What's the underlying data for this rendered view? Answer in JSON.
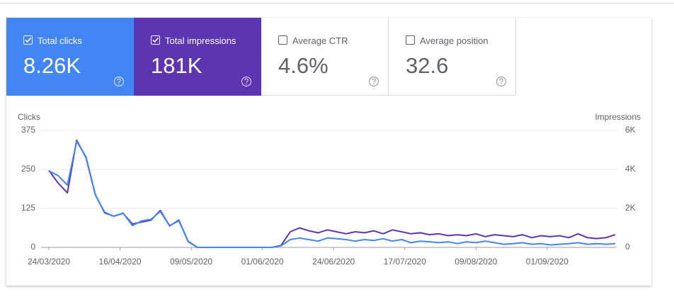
{
  "cards": [
    {
      "value": "8.26K",
      "checked": true
    },
    {
      "value": "181K",
      "checked": true
    },
    {
      "label": "Average CTR",
      "value": "4.6%",
      "checked": false
    },
    {
      "label": "Average position",
      "value": "32.6",
      "checked": false
    }
  ],
  "chart_data": {
    "type": "line",
    "ylabel": "Clicks",
    "y2label": "Impressions",
    "x": [
      "24/03/2020",
      "27/03/2020",
      "30/03/2020",
      "02/04/2020",
      "05/04/2020",
      "08/04/2020",
      "11/04/2020",
      "14/04/2020",
      "17/04/2020",
      "20/04/2020",
      "23/04/2020",
      "26/04/2020",
      "29/04/2020",
      "02/05/2020",
      "05/05/2020",
      "08/05/2020",
      "11/05/2020",
      "14/05/2020",
      "17/05/2020",
      "20/05/2020",
      "23/05/2020",
      "26/05/2020",
      "29/05/2020",
      "01/06/2020",
      "04/06/2020",
      "07/06/2020",
      "10/06/2020",
      "13/06/2020",
      "16/06/2020",
      "19/06/2020",
      "22/06/2020",
      "25/06/2020",
      "28/06/2020",
      "01/07/2020",
      "04/07/2020",
      "07/07/2020",
      "10/07/2020",
      "13/07/2020",
      "16/07/2020",
      "19/07/2020",
      "22/07/2020",
      "25/07/2020",
      "28/07/2020",
      "31/07/2020",
      "03/08/2020",
      "06/08/2020",
      "09/08/2020",
      "12/08/2020",
      "15/08/2020",
      "18/08/2020",
      "21/08/2020",
      "24/08/2020",
      "27/08/2020",
      "30/08/2020",
      "02/09/2020",
      "05/09/2020",
      "08/09/2020",
      "11/09/2020",
      "14/09/2020",
      "17/09/2020",
      "20/09/2020",
      "23/09/2020"
    ],
    "series": [
      {
        "name": "Total clicks",
        "color": "#4285f4",
        "values": [
          245,
          230,
          200,
          340,
          290,
          170,
          110,
          100,
          110,
          70,
          85,
          90,
          115,
          70,
          85,
          20,
          0,
          0,
          0,
          0,
          0,
          0,
          0,
          0,
          0,
          5,
          25,
          30,
          25,
          20,
          30,
          28,
          25,
          20,
          25,
          22,
          28,
          20,
          25,
          15,
          20,
          18,
          15,
          18,
          12,
          18,
          15,
          20,
          15,
          10,
          12,
          15,
          10,
          12,
          8,
          10,
          12,
          15,
          10,
          12,
          10,
          12
        ]
      },
      {
        "name": "Total impressions",
        "color": "#5e35b1",
        "axis": "y2",
        "values": [
          3950,
          3300,
          2800,
          5500,
          4600,
          2700,
          1800,
          1600,
          1750,
          1200,
          1300,
          1400,
          1900,
          1100,
          1400,
          300,
          0,
          0,
          0,
          0,
          0,
          0,
          0,
          0,
          0,
          100,
          800,
          1000,
          850,
          750,
          900,
          800,
          700,
          800,
          750,
          850,
          700,
          900,
          800,
          700,
          750,
          650,
          700,
          600,
          650,
          600,
          700,
          550,
          650,
          600,
          550,
          650,
          500,
          600,
          550,
          600,
          500,
          700,
          500,
          450,
          500,
          650
        ]
      }
    ],
    "ylim": [
      0,
      375
    ],
    "yticks": [
      0,
      125,
      250,
      375
    ],
    "y2lim": [
      0,
      6000
    ],
    "y2ticks": [
      0,
      {
        "value": 2000,
        "label": "2K"
      },
      {
        "value": 4000,
        "label": "4K"
      },
      {
        "value": 6000,
        "label": "6K"
      }
    ],
    "xticks": [
      "24/03/2020",
      "16/04/2020",
      "09/05/2020",
      "01/06/2020",
      "24/06/2020",
      "17/07/2020",
      "09/08/2020",
      "01/09/2020"
    ],
    "grid": true
  }
}
